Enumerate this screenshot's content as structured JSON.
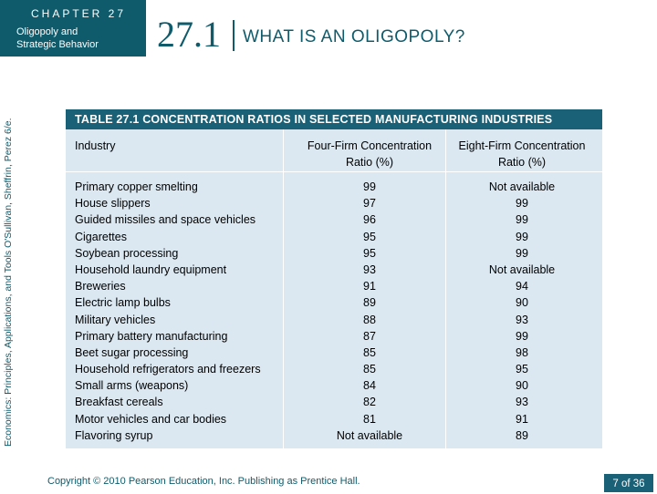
{
  "header": {
    "chapter_label": "CHAPTER 27",
    "chapter_subtitle_line1": "Oligopoly and",
    "chapter_subtitle_line2": "Strategic Behavior",
    "section_number": "27.1",
    "section_title": "WHAT IS AN OLIGOPOLY?"
  },
  "side_credit": "Economics: Principles, Applications, and Tools    O'Sullivan, Sheffrin, Perez    6/e.",
  "table": {
    "title": "TABLE 27.1  CONCENTRATION RATIOS IN SELECTED MANUFACTURING INDUSTRIES",
    "col_industry": "Industry",
    "col_four_line1": "Four-Firm Concentration",
    "col_four_line2": "Ratio (%)",
    "col_eight_line1": "Eight-Firm Concentration",
    "col_eight_line2": "Ratio (%)",
    "rows": [
      {
        "industry": "Primary copper smelting",
        "four": "99",
        "eight": "Not available"
      },
      {
        "industry": "House slippers",
        "four": "97",
        "eight": "99"
      },
      {
        "industry": "Guided missiles and space vehicles",
        "four": "96",
        "eight": "99"
      },
      {
        "industry": "Cigarettes",
        "four": "95",
        "eight": "99"
      },
      {
        "industry": "Soybean processing",
        "four": "95",
        "eight": "99"
      },
      {
        "industry": "Household laundry equipment",
        "four": "93",
        "eight": "Not available"
      },
      {
        "industry": "Breweries",
        "four": "91",
        "eight": "94"
      },
      {
        "industry": "Electric lamp bulbs",
        "four": "89",
        "eight": "90"
      },
      {
        "industry": "Military vehicles",
        "four": "88",
        "eight": "93"
      },
      {
        "industry": "Primary battery manufacturing",
        "four": "87",
        "eight": "99"
      },
      {
        "industry": "Beet sugar processing",
        "four": "85",
        "eight": "98"
      },
      {
        "industry": "Household refrigerators and freezers",
        "four": "85",
        "eight": "95"
      },
      {
        "industry": "Small arms (weapons)",
        "four": "84",
        "eight": "90"
      },
      {
        "industry": "Breakfast cereals",
        "four": "82",
        "eight": "93"
      },
      {
        "industry": "Motor vehicles and car bodies",
        "four": "81",
        "eight": "91"
      },
      {
        "industry": "Flavoring syrup",
        "four": "Not available",
        "eight": "89"
      }
    ]
  },
  "footer": {
    "copyright": "Copyright © 2010  Pearson Education, Inc. Publishing as Prentice Hall.",
    "page_number": "7 of 36"
  },
  "colors": {
    "brand_teal": "#0f5b6b",
    "table_header": "#1a6177",
    "table_body": "#dbe8f1"
  }
}
